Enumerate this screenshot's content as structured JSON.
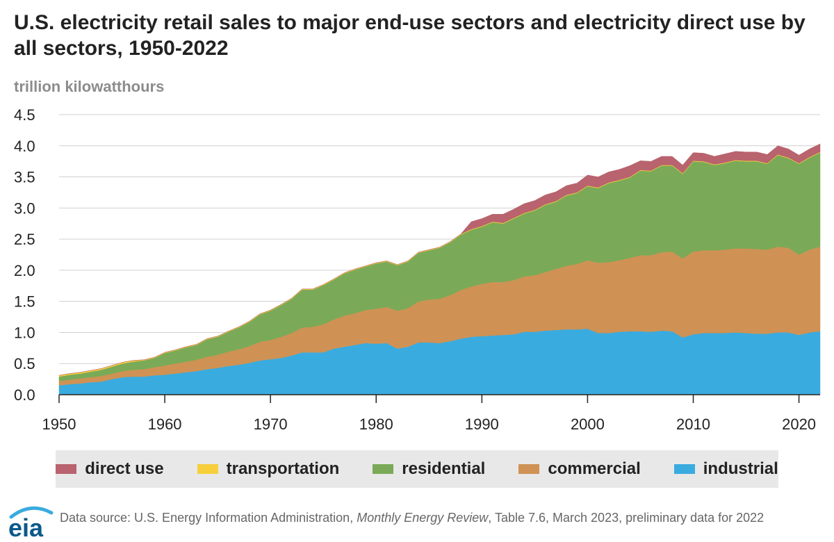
{
  "title": "U.S. electricity retail sales to major end-use sectors and electricity direct use by all sectors, 1950-2022",
  "unit_label": "trillion kilowatthours",
  "source": {
    "prefix": "Data source: U.S. Energy Information Administration, ",
    "publication": "Monthly Energy Review",
    "suffix": ", Table 7.6, March 2023, preliminary data for 2022"
  },
  "logo_text": "eia",
  "chart_data": {
    "type": "area",
    "stacked": true,
    "title": "U.S. electricity retail sales to major end-use sectors and electricity direct use by all sectors, 1950-2022",
    "ylabel": "trillion kilowatthours",
    "xlabel": "",
    "xlim": [
      1950,
      2022
    ],
    "ylim": [
      0,
      4.5
    ],
    "x_ticks": [
      1950,
      1960,
      1970,
      1980,
      1990,
      2000,
      2010,
      2020
    ],
    "y_ticks": [
      0.0,
      0.5,
      1.0,
      1.5,
      2.0,
      2.5,
      3.0,
      3.5,
      4.0,
      4.5
    ],
    "grid": "horizontal",
    "legend_position": "bottom",
    "legend_order": [
      "direct use",
      "transportation",
      "residential",
      "commercial",
      "industrial"
    ],
    "stack_order": [
      "industrial",
      "commercial",
      "residential",
      "transportation",
      "direct use"
    ],
    "colors": {
      "industrial": "#3aabdf",
      "commercial": "#cf9254",
      "residential": "#7aaa57",
      "transportation": "#f7cf3c",
      "direct use": "#b8636e"
    },
    "x": [
      1950,
      1951,
      1952,
      1953,
      1954,
      1955,
      1956,
      1957,
      1958,
      1959,
      1960,
      1961,
      1962,
      1963,
      1964,
      1965,
      1966,
      1967,
      1968,
      1969,
      1970,
      1971,
      1972,
      1973,
      1974,
      1975,
      1976,
      1977,
      1978,
      1979,
      1980,
      1981,
      1982,
      1983,
      1984,
      1985,
      1986,
      1987,
      1988,
      1989,
      1990,
      1991,
      1992,
      1993,
      1994,
      1995,
      1996,
      1997,
      1998,
      1999,
      2000,
      2001,
      2002,
      2003,
      2004,
      2005,
      2006,
      2007,
      2008,
      2009,
      2010,
      2011,
      2012,
      2013,
      2014,
      2015,
      2016,
      2017,
      2018,
      2019,
      2020,
      2021,
      2022
    ],
    "series": [
      {
        "name": "industrial",
        "values": [
          0.15,
          0.17,
          0.18,
          0.2,
          0.21,
          0.25,
          0.28,
          0.29,
          0.29,
          0.31,
          0.32,
          0.34,
          0.36,
          0.38,
          0.41,
          0.43,
          0.46,
          0.48,
          0.51,
          0.55,
          0.57,
          0.59,
          0.63,
          0.68,
          0.68,
          0.68,
          0.74,
          0.77,
          0.8,
          0.83,
          0.82,
          0.83,
          0.74,
          0.77,
          0.84,
          0.84,
          0.83,
          0.86,
          0.9,
          0.93,
          0.94,
          0.95,
          0.96,
          0.97,
          1.01,
          1.01,
          1.03,
          1.04,
          1.05,
          1.05,
          1.06,
          0.99,
          0.99,
          1.01,
          1.02,
          1.02,
          1.01,
          1.03,
          1.02,
          0.92,
          0.97,
          0.99,
          0.99,
          0.99,
          1.0,
          0.99,
          0.98,
          0.98,
          1.0,
          1.0,
          0.96,
          1.0,
          1.02
        ]
      },
      {
        "name": "commercial",
        "values": [
          0.07,
          0.07,
          0.08,
          0.08,
          0.09,
          0.09,
          0.1,
          0.11,
          0.12,
          0.13,
          0.15,
          0.16,
          0.17,
          0.18,
          0.2,
          0.21,
          0.23,
          0.25,
          0.27,
          0.3,
          0.31,
          0.34,
          0.36,
          0.4,
          0.41,
          0.45,
          0.47,
          0.5,
          0.51,
          0.53,
          0.56,
          0.58,
          0.61,
          0.62,
          0.66,
          0.69,
          0.71,
          0.74,
          0.78,
          0.81,
          0.84,
          0.86,
          0.85,
          0.87,
          0.89,
          0.91,
          0.94,
          0.98,
          1.02,
          1.05,
          1.1,
          1.13,
          1.14,
          1.15,
          1.18,
          1.22,
          1.23,
          1.26,
          1.28,
          1.27,
          1.33,
          1.33,
          1.33,
          1.34,
          1.35,
          1.36,
          1.36,
          1.35,
          1.38,
          1.36,
          1.29,
          1.33,
          1.36
        ]
      },
      {
        "name": "residential",
        "values": [
          0.07,
          0.08,
          0.08,
          0.09,
          0.1,
          0.11,
          0.12,
          0.13,
          0.14,
          0.15,
          0.2,
          0.21,
          0.23,
          0.24,
          0.28,
          0.29,
          0.32,
          0.35,
          0.39,
          0.44,
          0.47,
          0.51,
          0.55,
          0.61,
          0.6,
          0.63,
          0.64,
          0.68,
          0.7,
          0.7,
          0.73,
          0.73,
          0.73,
          0.75,
          0.78,
          0.79,
          0.82,
          0.85,
          0.89,
          0.91,
          0.92,
          0.96,
          0.94,
          0.99,
          1.01,
          1.04,
          1.08,
          1.08,
          1.13,
          1.14,
          1.19,
          1.2,
          1.27,
          1.28,
          1.29,
          1.36,
          1.35,
          1.39,
          1.38,
          1.36,
          1.45,
          1.42,
          1.37,
          1.39,
          1.41,
          1.4,
          1.41,
          1.38,
          1.47,
          1.44,
          1.46,
          1.48,
          1.51
        ]
      },
      {
        "name": "transportation",
        "values": [
          0.02,
          0.02,
          0.02,
          0.02,
          0.02,
          0.02,
          0.02,
          0.02,
          0.01,
          0.01,
          0.01,
          0.01,
          0.01,
          0.01,
          0.01,
          0.01,
          0.01,
          0.01,
          0.01,
          0.01,
          0.01,
          0.01,
          0.01,
          0.01,
          0.01,
          0.01,
          0.01,
          0.01,
          0.01,
          0.01,
          0.01,
          0.01,
          0.01,
          0.01,
          0.01,
          0.01,
          0.01,
          0.01,
          0.01,
          0.01,
          0.01,
          0.01,
          0.01,
          0.01,
          0.01,
          0.01,
          0.01,
          0.01,
          0.01,
          0.01,
          0.01,
          0.01,
          0.01,
          0.01,
          0.01,
          0.01,
          0.01,
          0.01,
          0.01,
          0.01,
          0.01,
          0.01,
          0.01,
          0.01,
          0.01,
          0.01,
          0.01,
          0.01,
          0.01,
          0.01,
          0.01,
          0.01,
          0.01
        ]
      },
      {
        "name": "direct use",
        "values": [
          0,
          0,
          0,
          0,
          0,
          0,
          0,
          0,
          0,
          0,
          0,
          0,
          0,
          0,
          0,
          0,
          0,
          0,
          0,
          0,
          0,
          0,
          0,
          0,
          0,
          0,
          0,
          0,
          0,
          0,
          0,
          0,
          0,
          0,
          0,
          0,
          0,
          0,
          0,
          0.12,
          0.12,
          0.12,
          0.14,
          0.14,
          0.15,
          0.15,
          0.15,
          0.15,
          0.15,
          0.15,
          0.17,
          0.17,
          0.17,
          0.17,
          0.18,
          0.15,
          0.15,
          0.14,
          0.14,
          0.13,
          0.13,
          0.13,
          0.13,
          0.14,
          0.14,
          0.14,
          0.14,
          0.14,
          0.14,
          0.14,
          0.13,
          0.13,
          0.13
        ]
      }
    ]
  }
}
